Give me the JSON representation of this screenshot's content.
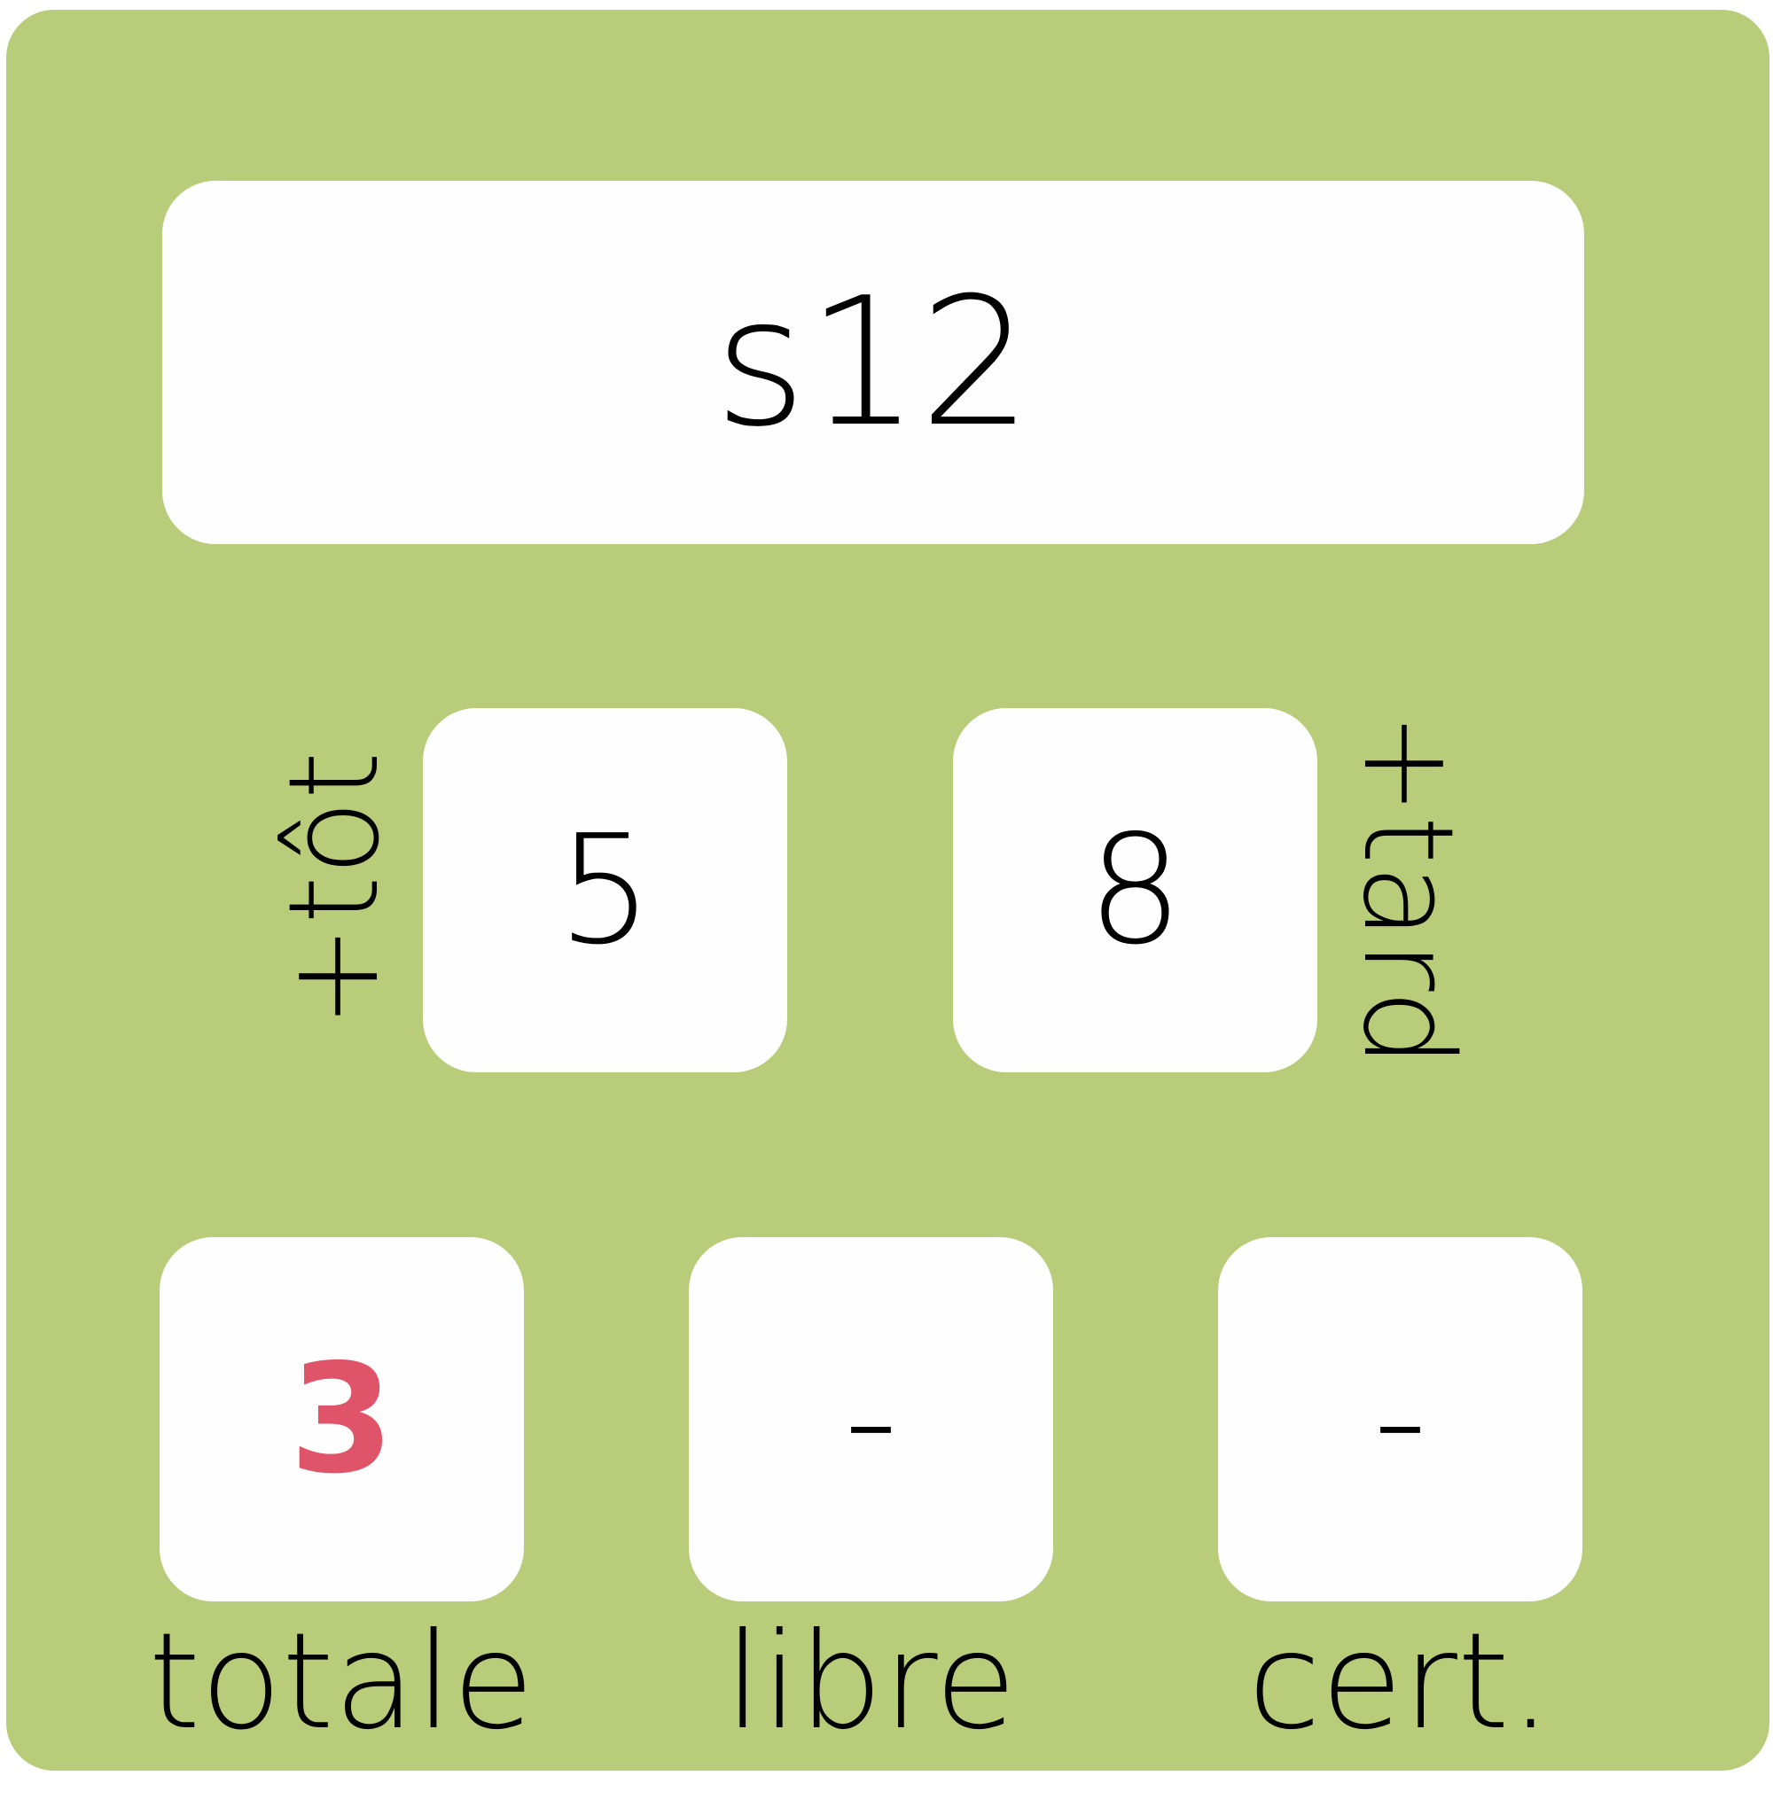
{
  "title": "s12",
  "early": {
    "label": "+tôt",
    "value": "5"
  },
  "late": {
    "label": "+tard",
    "value": "8"
  },
  "margins": [
    {
      "label": "totale",
      "value": "3"
    },
    {
      "label": "libre",
      "value": "-"
    },
    {
      "label": "cert.",
      "value": "-"
    }
  ],
  "colors": {
    "card_background": "#b8cc7a",
    "box_background": "#fefefe",
    "highlight_value": "#e0546a"
  }
}
